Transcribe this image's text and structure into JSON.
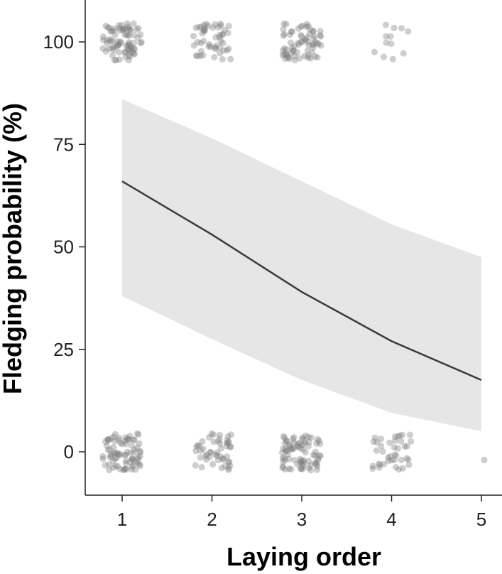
{
  "chart_data": {
    "type": "line",
    "title": "",
    "xlabel": "Laying order",
    "ylabel": "Fledging probability (%)",
    "x_ticks": [
      "1",
      "2",
      "3",
      "4",
      "5"
    ],
    "y_ticks": [
      "0",
      "25",
      "50",
      "75",
      "100"
    ],
    "xlim": [
      0.6,
      5.25
    ],
    "ylim": [
      -10,
      110
    ],
    "grid": false,
    "legend": "none",
    "series": [
      {
        "x": [
          1,
          2,
          3,
          4,
          5
        ],
        "values": [
          66,
          53,
          39,
          27,
          17.5
        ],
        "ci_lower": [
          38,
          27.5,
          17.5,
          9.5,
          5
        ],
        "ci_upper": [
          86,
          76.5,
          66,
          55.5,
          47.5
        ]
      }
    ],
    "observations": {
      "fledged_100": [
        {
          "x": 1,
          "n": 80
        },
        {
          "x": 2,
          "n": 50
        },
        {
          "x": 3,
          "n": 70
        },
        {
          "x": 4,
          "n": 12
        },
        {
          "x": 5,
          "n": 0
        }
      ],
      "fledged_0": [
        {
          "x": 1,
          "n": 80
        },
        {
          "x": 2,
          "n": 50
        },
        {
          "x": 3,
          "n": 80
        },
        {
          "x": 4,
          "n": 40
        },
        {
          "x": 5,
          "n": 1
        }
      ]
    },
    "colors": {
      "line": "#3a3a3a",
      "ribbon": "#e6e6e6",
      "points": "#7f7f7f",
      "axis": "#222222"
    }
  }
}
